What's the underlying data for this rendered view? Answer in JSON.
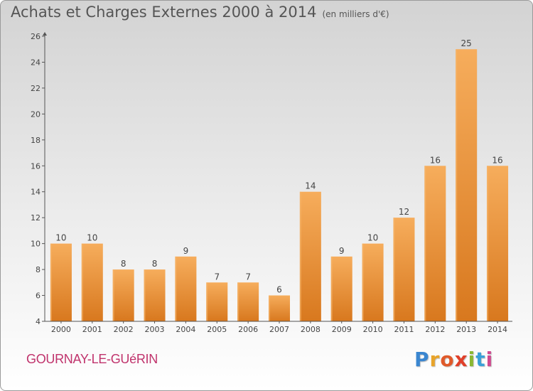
{
  "title": "Achats et Charges Externes 2000 à 2014",
  "subtitle": "(en milliers d'€)",
  "commune": "GOURNAY-LE-GUéRIN",
  "logo": {
    "letters": [
      "P",
      "r",
      "o",
      "x",
      "i",
      "t",
      "i"
    ],
    "colors": [
      "#3a86d0",
      "#e8a42a",
      "#e05a2a",
      "#e0402a",
      "#8ab832",
      "#3aa0d8",
      "#d04a90"
    ]
  },
  "colors": {
    "bar": "#f09a3e",
    "bar_light": "#f5ab5a",
    "bar_dark": "#d8761c",
    "axis": "#555555"
  },
  "chart_data": {
    "type": "bar",
    "categories": [
      "2000",
      "2001",
      "2002",
      "2003",
      "2004",
      "2005",
      "2006",
      "2007",
      "2008",
      "2009",
      "2010",
      "2011",
      "2012",
      "2013",
      "2014"
    ],
    "values": [
      10,
      10,
      8,
      8,
      9,
      7,
      7,
      6,
      14,
      9,
      10,
      12,
      16,
      25,
      16
    ],
    "data_labels": [
      "10",
      "10",
      "8",
      "8",
      "9",
      "7",
      "7",
      "6",
      "14",
      "9",
      "10",
      "12",
      "16",
      "25",
      "16"
    ],
    "y_ticks": [
      4,
      6,
      8,
      10,
      12,
      14,
      16,
      18,
      20,
      22,
      24,
      26
    ],
    "ylim": [
      4,
      26
    ],
    "grid": false,
    "title": "Achats et Charges Externes 2000 à 2014",
    "xlabel": "",
    "ylabel": ""
  }
}
